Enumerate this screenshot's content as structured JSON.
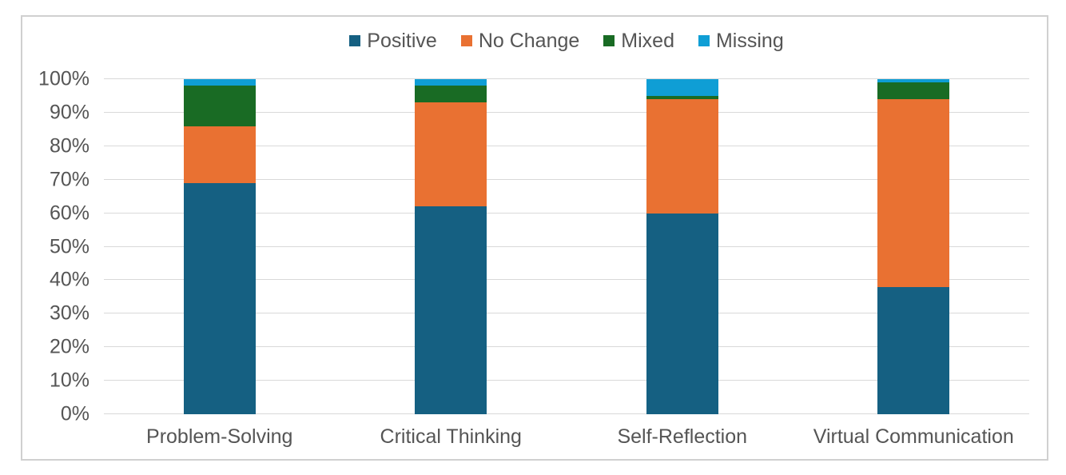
{
  "chart_data": {
    "type": "bar",
    "subtype": "stacked-100-percent",
    "title": "",
    "xlabel": "",
    "ylabel": "",
    "categories": [
      "Problem-Solving",
      "Critical Thinking",
      "Self-Reflection",
      "Virtual Communication"
    ],
    "series": [
      {
        "name": "Positive",
        "color": "#156082",
        "values": [
          69,
          62,
          60,
          38
        ]
      },
      {
        "name": "No Change",
        "color": "#E97132",
        "values": [
          17,
          31,
          34,
          56
        ]
      },
      {
        "name": "Mixed",
        "color": "#196B24",
        "values": [
          12,
          5,
          1,
          5
        ]
      },
      {
        "name": "Missing",
        "color": "#0F9ED5",
        "values": [
          2,
          2,
          5,
          1
        ]
      }
    ],
    "ylim": [
      0,
      100
    ],
    "yticks": [
      "0%",
      "10%",
      "20%",
      "30%",
      "40%",
      "50%",
      "60%",
      "70%",
      "80%",
      "90%",
      "100%"
    ],
    "grid": true,
    "legend_position": "top",
    "colors": {
      "gridline": "#d9d9d9",
      "axis_text": "#555555",
      "frame_border": "#d0d0d0",
      "background": "#ffffff"
    }
  }
}
